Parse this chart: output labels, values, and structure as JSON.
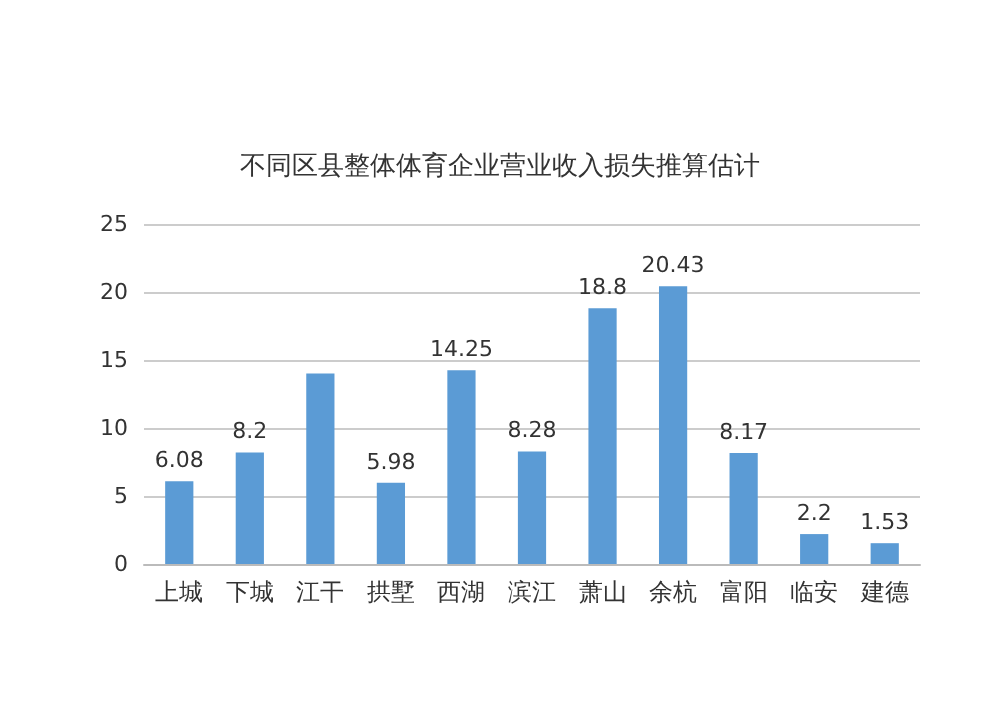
{
  "chart_data": {
    "type": "bar",
    "title": "不同区县整体体育企业营业收入损失推算估计",
    "categories": [
      "上城",
      "下城",
      "江干",
      "拱墅",
      "西湖",
      "滨江",
      "萧山",
      "余杭",
      "富阳",
      "临安",
      "建德"
    ],
    "values": [
      6.08,
      8.2,
      14,
      5.98,
      14.25,
      8.28,
      18.8,
      20.43,
      8.17,
      2.2,
      1.53
    ],
    "value_labels": [
      "6.08",
      "8.2",
      null,
      "5.98",
      "14.25",
      "8.28",
      "18.8",
      "20.43",
      "8.17",
      "2.2",
      "1.53"
    ],
    "color": "#5b9bd5",
    "ylim": [
      0,
      25
    ],
    "yticks": [
      0,
      5,
      10,
      15,
      20,
      25
    ],
    "grid": "y"
  }
}
